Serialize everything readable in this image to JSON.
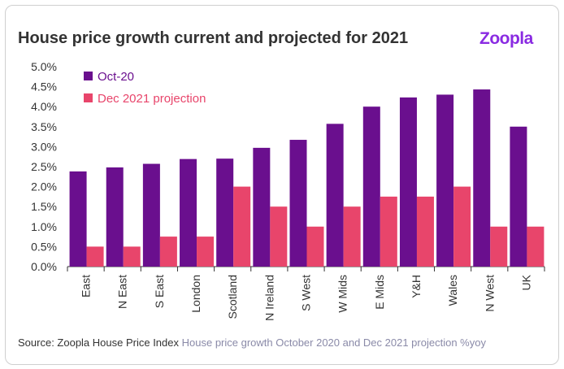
{
  "header": {
    "title": "House price growth current and projected for 2021",
    "logo": "Zoopla"
  },
  "footer": {
    "source": "Source: Zoopla House Price Index",
    "description": "House price growth October 2020 and Dec 2021 projection %yoy"
  },
  "colors": {
    "series_a": "#6a0f8e",
    "series_b": "#e8456b",
    "logo": "#8a2be2"
  },
  "chart_data": {
    "type": "bar",
    "title": "House price growth current and projected for 2021",
    "xlabel": "",
    "ylabel": "",
    "ylim": [
      0,
      5
    ],
    "yticks": [
      "0.0%",
      "0.5%",
      "1.0%",
      "1.5%",
      "2.0%",
      "2.5%",
      "3.0%",
      "3.5%",
      "4.0%",
      "4.5%",
      "5.0%"
    ],
    "categories": [
      "East",
      "N East",
      "S East",
      "London",
      "Scotland",
      "N Ireland",
      "S West",
      "W Mids",
      "E Mids",
      "Y&H",
      "Wales",
      "N West",
      "UK"
    ],
    "series": [
      {
        "name": "Oct-20",
        "color": "#6a0f8e",
        "values": [
          2.38,
          2.48,
          2.57,
          2.69,
          2.7,
          2.97,
          3.17,
          3.57,
          4.0,
          4.23,
          4.3,
          4.43,
          3.5
        ]
      },
      {
        "name": "Dec 2021 projection",
        "color": "#e8456b",
        "values": [
          0.5,
          0.5,
          0.75,
          0.75,
          2.0,
          1.5,
          1.0,
          1.5,
          1.75,
          1.75,
          2.0,
          1.0,
          1.0
        ]
      }
    ],
    "legend": "top-left"
  }
}
